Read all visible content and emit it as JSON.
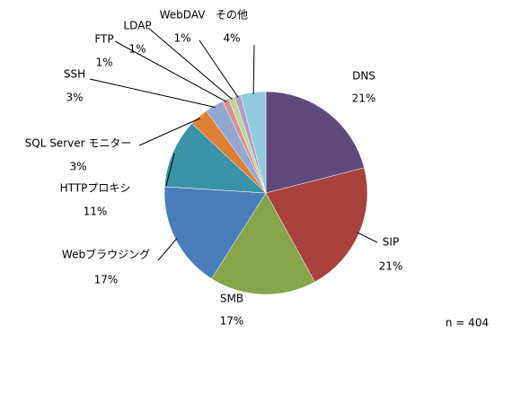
{
  "chart_data": {
    "type": "pie",
    "categories": [
      "DNS",
      "SIP",
      "SMB",
      "Webブラウジング",
      "HTTPプロキシ",
      "SQL Server モニター",
      "SSH",
      "FTP",
      "LDAP",
      "WebDAV",
      "その他"
    ],
    "values": [
      21,
      21,
      17,
      17,
      11,
      3,
      3,
      1,
      1,
      1,
      4
    ],
    "value_labels": [
      "21%",
      "21%",
      "17%",
      "17%",
      "11%",
      "3%",
      "3%",
      "1%",
      "1%",
      "1%",
      "4%"
    ],
    "colors": [
      "#604a7b",
      "#a9413f",
      "#86a44a",
      "#4a7ebb",
      "#3a93a8",
      "#de7f35",
      "#93a7d0",
      "#d79391",
      "#bfd496",
      "#ae9fc4",
      "#92cbdb"
    ],
    "annotation": "n = 404"
  }
}
